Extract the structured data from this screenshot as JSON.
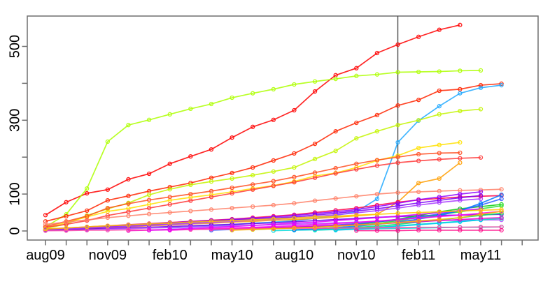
{
  "chart_data": {
    "type": "line",
    "title": "",
    "xlabel": "",
    "ylabel": "",
    "x_months": [
      "aug09",
      "sep09",
      "oct09",
      "nov09",
      "dec09",
      "jan10",
      "feb10",
      "mar10",
      "apr10",
      "may10",
      "jun10",
      "jul10",
      "aug10",
      "sep10",
      "oct10",
      "nov10",
      "dec10",
      "jan11",
      "feb11",
      "mar11",
      "apr11",
      "may11",
      "jun11",
      "jul11"
    ],
    "x_labeled_indices": [
      0,
      3,
      6,
      9,
      12,
      15,
      18,
      21
    ],
    "x_tick_labels": [
      "aug09",
      "nov09",
      "feb10",
      "may10",
      "aug10",
      "nov10",
      "feb11",
      "may11"
    ],
    "y_ticks": [
      0,
      100,
      200,
      300,
      400,
      500
    ],
    "y_labeled_ticks": [
      0,
      100,
      300,
      500
    ],
    "ylim": [
      -22,
      582
    ],
    "grid": false,
    "legend": "none",
    "vline_month": "jan11",
    "vline_color": "#4d4d4d",
    "axis_color": "#6e6e6e",
    "marker": "open-circle",
    "series": [
      {
        "name": "red-a",
        "color": "#FF0000",
        "values": [
          43,
          78,
          102,
          112,
          140,
          155,
          182,
          202,
          221,
          253,
          282,
          301,
          327,
          378,
          422,
          441,
          482,
          505,
          526,
          545,
          558,
          null,
          null,
          null
        ]
      },
      {
        "name": "chartreuse-a",
        "color": "#ADFF00",
        "values": [
          11,
          45,
          115,
          242,
          287,
          301,
          316,
          331,
          344,
          361,
          373,
          384,
          397,
          405,
          412,
          420,
          424,
          430,
          431,
          432,
          434,
          435,
          null,
          null
        ]
      },
      {
        "name": "red-b",
        "color": "#FF2400",
        "values": [
          26,
          40,
          55,
          83,
          95,
          108,
          119,
          130,
          144,
          157,
          172,
          191,
          210,
          236,
          270,
          293,
          314,
          340,
          355,
          380,
          384,
          395,
          399,
          null
        ]
      },
      {
        "name": "skyblue",
        "color": "#1FA8FF",
        "values": [
          null,
          null,
          null,
          null,
          null,
          null,
          8,
          11,
          14,
          17,
          21,
          24,
          28,
          34,
          42,
          52,
          87,
          240,
          299,
          338,
          373,
          388,
          395,
          null
        ]
      },
      {
        "name": "chartreuse-b",
        "color": "#C3F500",
        "values": [
          6,
          19,
          42,
          60,
          76,
          98,
          113,
          125,
          134,
          142,
          151,
          161,
          172,
          195,
          217,
          251,
          270,
          287,
          300,
          316,
          325,
          330,
          null,
          null
        ]
      },
      {
        "name": "yellow",
        "color": "#FFE100",
        "values": [
          8,
          23,
          38,
          53,
          61,
          72,
          83,
          91,
          98,
          106,
          115,
          123,
          134,
          149,
          157,
          172,
          191,
          204,
          225,
          233,
          240,
          null,
          null,
          null
        ]
      },
      {
        "name": "tomato",
        "color": "#FF4D21",
        "values": [
          12,
          26,
          40,
          62,
          74,
          84,
          92,
          100,
          108,
          117,
          126,
          135,
          146,
          158,
          170,
          182,
          192,
          200,
          208,
          211,
          212,
          null,
          null,
          null
        ]
      },
      {
        "name": "red-c",
        "color": "#FF3838",
        "values": [
          10,
          18,
          28,
          42,
          52,
          62,
          72,
          82,
          92,
          102,
          112,
          122,
          132,
          144,
          156,
          167,
          177,
          185,
          190,
          194,
          197,
          199,
          null,
          null
        ]
      },
      {
        "name": "salmon",
        "color": "#FF7F66",
        "values": [
          18,
          24,
          30,
          36,
          41,
          46,
          50,
          54,
          58,
          62,
          66,
          70,
          75,
          82,
          88,
          94,
          100,
          104,
          106,
          108,
          110,
          111,
          113,
          null
        ]
      },
      {
        "name": "orange-a",
        "color": "#FF9E00",
        "values": [
          2,
          4,
          6,
          9,
          11,
          14,
          16,
          19,
          21,
          24,
          26,
          29,
          31,
          34,
          37,
          41,
          45,
          78,
          130,
          142,
          185,
          null,
          null,
          null
        ]
      },
      {
        "name": "crimson",
        "color": "#FF0049",
        "values": [
          5,
          8,
          11,
          14,
          17,
          20,
          23,
          26,
          29,
          32,
          36,
          40,
          44,
          50,
          56,
          62,
          70,
          78,
          84,
          88,
          92,
          94,
          96,
          null
        ]
      },
      {
        "name": "purple-a",
        "color": "#9000FF",
        "values": [
          4,
          7,
          10,
          13,
          16,
          19,
          22,
          25,
          28,
          31,
          34,
          38,
          42,
          47,
          52,
          58,
          66,
          75,
          85,
          92,
          100,
          106,
          null,
          null
        ]
      },
      {
        "name": "purple-b",
        "color": "#7A00F5",
        "values": [
          3,
          6,
          9,
          12,
          14,
          17,
          20,
          23,
          26,
          29,
          32,
          35,
          38,
          43,
          48,
          54,
          60,
          68,
          76,
          83,
          90,
          96,
          null,
          null
        ]
      },
      {
        "name": "violet-a",
        "color": "#A838FF",
        "values": [
          2,
          5,
          8,
          10,
          12,
          15,
          18,
          20,
          23,
          26,
          29,
          32,
          35,
          39,
          44,
          49,
          55,
          62,
          70,
          77,
          83,
          87,
          null,
          null
        ]
      },
      {
        "name": "purple-c",
        "color": "#6A00E8",
        "values": [
          2,
          3,
          5,
          7,
          8,
          10,
          12,
          14,
          16,
          18,
          20,
          22,
          25,
          28,
          31,
          34,
          37,
          39,
          41,
          42,
          43,
          44,
          45,
          null
        ]
      },
      {
        "name": "violet-b",
        "color": "#B44DFF",
        "values": [
          1,
          2,
          3,
          5,
          6,
          8,
          9,
          11,
          12,
          14,
          15,
          17,
          18,
          20,
          22,
          24,
          26,
          27,
          28,
          29,
          29,
          30,
          30,
          null
        ]
      },
      {
        "name": "green-a",
        "color": "#0ACC0A",
        "values": [
          null,
          null,
          null,
          null,
          null,
          null,
          null,
          null,
          null,
          null,
          5,
          7,
          9,
          12,
          15,
          18,
          24,
          32,
          42,
          52,
          60,
          66,
          72,
          null
        ]
      },
      {
        "name": "green-b",
        "color": "#2EE52E",
        "values": [
          null,
          null,
          null,
          null,
          null,
          null,
          null,
          null,
          null,
          null,
          4,
          6,
          8,
          10,
          13,
          16,
          20,
          28,
          36,
          44,
          52,
          60,
          68,
          null
        ]
      },
      {
        "name": "springgreen",
        "color": "#00E866",
        "values": [
          null,
          null,
          null,
          null,
          null,
          null,
          null,
          null,
          null,
          null,
          null,
          null,
          3,
          5,
          7,
          10,
          13,
          18,
          24,
          30,
          36,
          42,
          48,
          null
        ]
      },
      {
        "name": "teal",
        "color": "#00E0C0",
        "values": [
          null,
          null,
          null,
          null,
          null,
          null,
          null,
          null,
          null,
          null,
          null,
          null,
          null,
          2,
          4,
          7,
          10,
          14,
          18,
          22,
          26,
          30,
          34,
          null
        ]
      },
      {
        "name": "turquoise",
        "color": "#00D9D9",
        "values": [
          null,
          null,
          null,
          null,
          null,
          null,
          null,
          null,
          null,
          null,
          null,
          1,
          2,
          3,
          4,
          5,
          6,
          7,
          8,
          9,
          10,
          10,
          11,
          null
        ]
      },
      {
        "name": "cyan-b",
        "color": "#00C8F0",
        "values": [
          null,
          null,
          null,
          null,
          null,
          null,
          null,
          null,
          null,
          null,
          null,
          null,
          null,
          null,
          2,
          5,
          9,
          13,
          17,
          21,
          25,
          30,
          null,
          null
        ]
      },
      {
        "name": "blue-b",
        "color": "#2E5CFF",
        "values": [
          null,
          null,
          null,
          null,
          null,
          null,
          null,
          null,
          2,
          4,
          6,
          8,
          10,
          13,
          16,
          20,
          25,
          31,
          38,
          46,
          56,
          70,
          87,
          null
        ]
      },
      {
        "name": "blue-c",
        "color": "#0076FF",
        "values": [
          null,
          null,
          null,
          null,
          null,
          null,
          null,
          null,
          null,
          null,
          null,
          null,
          3,
          6,
          9,
          13,
          18,
          24,
          32,
          42,
          55,
          75,
          98,
          null
        ]
      },
      {
        "name": "magenta-a",
        "color": "#FF00F0",
        "values": [
          null,
          null,
          null,
          null,
          null,
          null,
          2,
          4,
          6,
          8,
          10,
          12,
          14,
          17,
          20,
          23,
          27,
          31,
          35,
          39,
          43,
          48,
          53,
          null
        ]
      },
      {
        "name": "magenta-b",
        "color": "#F000CC",
        "values": [
          null,
          null,
          null,
          null,
          1,
          2,
          3,
          4,
          5,
          6,
          8,
          9,
          11,
          13,
          15,
          17,
          19,
          22,
          25,
          28,
          31,
          34,
          36,
          null
        ]
      },
      {
        "name": "pink",
        "color": "#FF4DA6",
        "values": [
          1,
          1,
          2,
          2,
          3,
          3,
          4,
          4,
          5,
          5,
          6,
          6,
          7,
          7,
          8,
          8,
          9,
          9,
          10,
          10,
          10,
          11,
          11,
          null
        ]
      },
      {
        "name": "deeppink",
        "color": "#FF0D8A",
        "values": [
          null,
          null,
          null,
          null,
          null,
          null,
          null,
          null,
          null,
          null,
          null,
          null,
          null,
          null,
          null,
          1,
          1,
          1,
          2,
          2,
          2,
          2,
          2,
          null
        ]
      },
      {
        "name": "magenta-c",
        "color": "#E100FF",
        "values": [
          null,
          null,
          null,
          null,
          null,
          2,
          4,
          7,
          9,
          12,
          15,
          18,
          21,
          24,
          28,
          32,
          36,
          40,
          45,
          50,
          55,
          60,
          null,
          null
        ]
      },
      {
        "name": "orange-b",
        "color": "#FFB300",
        "values": [
          null,
          null,
          null,
          null,
          null,
          null,
          null,
          null,
          null,
          2,
          4,
          6,
          8,
          10,
          13,
          16,
          19,
          23,
          27,
          31,
          36,
          45,
          53,
          null
        ]
      },
      {
        "name": "gold",
        "color": "#FFC800",
        "values": [
          5,
          8,
          11,
          14,
          16,
          19,
          21,
          24,
          26,
          28,
          30,
          33,
          35,
          38,
          40,
          43,
          45,
          48,
          50,
          52,
          54,
          56,
          58,
          null
        ]
      }
    ]
  }
}
